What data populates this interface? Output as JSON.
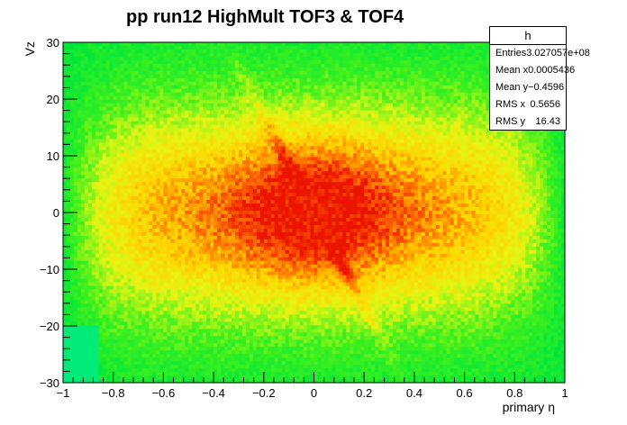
{
  "title": "pp run12 HighMult TOF3 & TOF4",
  "stats": {
    "name": "h",
    "rows": [
      {
        "label": "Entries",
        "value": "3.027057e+08"
      },
      {
        "label": "Mean x",
        "value": "0.0005436"
      },
      {
        "label": "Mean y",
        "value": "−0.4596"
      },
      {
        "label": "RMS x",
        "value": "0.5656"
      },
      {
        "label": "RMS y",
        "value": "16.43"
      }
    ]
  },
  "chart_data": {
    "type": "heatmap",
    "title": "pp run12 HighMult TOF3 & TOF4",
    "xlabel": "primary η",
    "ylabel": "Vz",
    "xlim": [
      -1,
      1
    ],
    "ylim": [
      -30,
      30
    ],
    "x_ticks": [
      "−1",
      "−0.8",
      "−0.6",
      "−0.4",
      "−0.2",
      "0",
      "0.2",
      "0.4",
      "0.6",
      "0.8",
      "1"
    ],
    "y_ticks": [
      "−30",
      "−20",
      "−10",
      "0",
      "10",
      "20",
      "30"
    ],
    "x_tick_values": [
      -1,
      -0.8,
      -0.6,
      -0.4,
      -0.2,
      0,
      0.2,
      0.4,
      0.6,
      0.8,
      1
    ],
    "y_tick_values": [
      -30,
      -20,
      -10,
      0,
      10,
      20,
      30
    ],
    "colors": {
      "low": "#00ff33",
      "mid": "#ffff00",
      "high": "#ff4400",
      "peak": "#ee0000"
    }
  }
}
